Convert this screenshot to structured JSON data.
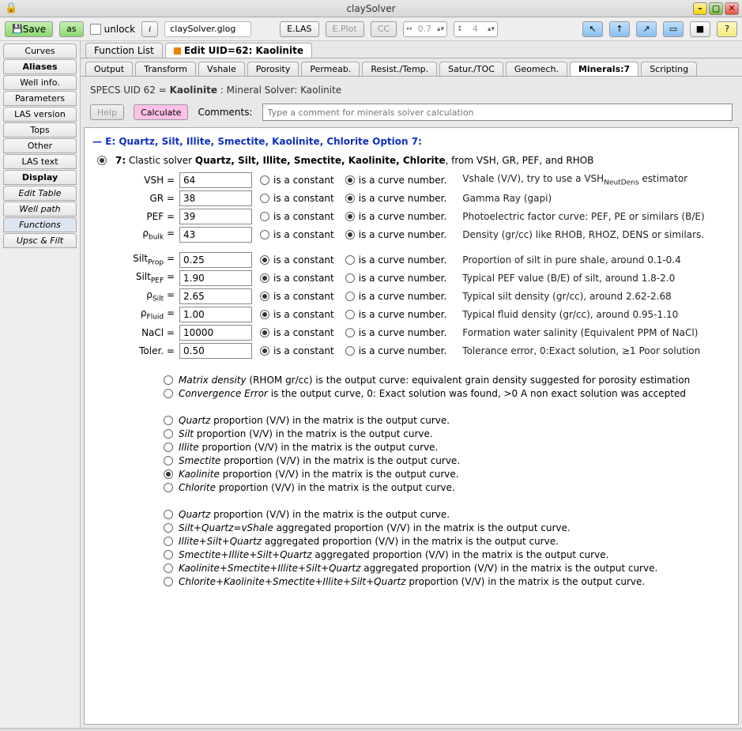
{
  "window": {
    "title": "claySolver"
  },
  "toolbar": {
    "save": "Save",
    "as": "as",
    "unlock": "unlock",
    "info": "i",
    "file": "claySolver.glog",
    "elas": "E.LAS",
    "eplot": "E.Plot",
    "cc": "CC",
    "spin1": "0.7",
    "spin2": "4",
    "help": "?"
  },
  "sidebar": [
    {
      "label": "Curves",
      "bold": false,
      "italic": false,
      "active": false
    },
    {
      "label": "Aliases",
      "bold": true,
      "italic": false,
      "active": false
    },
    {
      "label": "Well info.",
      "bold": false,
      "italic": false,
      "active": false
    },
    {
      "label": "Parameters",
      "bold": false,
      "italic": false,
      "active": false
    },
    {
      "label": "LAS version",
      "bold": false,
      "italic": false,
      "active": false
    },
    {
      "label": "Tops",
      "bold": false,
      "italic": false,
      "active": false
    },
    {
      "label": "Other",
      "bold": false,
      "italic": false,
      "active": false
    },
    {
      "label": "LAS text",
      "bold": false,
      "italic": false,
      "active": false
    },
    {
      "label": "Display",
      "bold": true,
      "italic": false,
      "active": false
    },
    {
      "label": "Edit Table",
      "bold": false,
      "italic": true,
      "active": false
    },
    {
      "label": "Well path",
      "bold": false,
      "italic": true,
      "active": false
    },
    {
      "label": "Functions",
      "bold": false,
      "italic": true,
      "active": true
    },
    {
      "label": "Upsc & Filt",
      "bold": false,
      "italic": true,
      "active": false
    }
  ],
  "toptabs": [
    {
      "label": "Function List",
      "active": false
    },
    {
      "label": "Edit UID=62: Kaolinite",
      "active": true,
      "icon": true
    }
  ],
  "subtabs": [
    {
      "label": "Output",
      "active": false
    },
    {
      "label": "Transform",
      "active": false
    },
    {
      "label": "Vshale",
      "active": false
    },
    {
      "label": "Porosity",
      "active": false
    },
    {
      "label": "Permeab.",
      "active": false
    },
    {
      "label": "Resist./Temp.",
      "active": false
    },
    {
      "label": "Satur./TOC",
      "active": false
    },
    {
      "label": "Geomech.",
      "active": false
    },
    {
      "label": "Minerals:7",
      "active": true
    },
    {
      "label": "Scripting",
      "active": false
    }
  ],
  "specs": {
    "pre": "SPECS UID 62 = ",
    "name": "Kaolinite",
    "post": " : Mineral Solver: Kaolinite"
  },
  "help": "Help",
  "calc": "Calculate",
  "comments_label": "Comments:",
  "comment_placeholder": "Type a comment for minerals solver calculation",
  "section_hdr": "— E: Quartz, Silt, Illite, Smectite, Kaolinite, Chlorite Option 7:",
  "opt7": {
    "pre": "7:",
    "t1": "Clastic solver  ",
    "bold": "Quartz, Silt, Illite, Smectite, Kaolinite, Chlorite",
    "post": ", from VSH, GR, PEF, and RHOB"
  },
  "labels": {
    "const": "is a constant",
    "curve": "is a curve number."
  },
  "params": [
    {
      "label": "VSH =",
      "value": "64",
      "const": false,
      "curve": true,
      "desc_html": "Vshale (V/V), try to use a VSH<span class=\"sub\">NeutDens</span> estimator"
    },
    {
      "label": "GR =",
      "value": "38",
      "const": false,
      "curve": true,
      "desc_html": "Gamma Ray (gapi)"
    },
    {
      "label": "PEF =",
      "value": "39",
      "const": false,
      "curve": true,
      "desc_html": "Photoelectric factor curve: PEF, PE or similars (B/E)"
    },
    {
      "label_html": "ρ<span class=\"sub\">bulk</span> =",
      "value": "43",
      "const": false,
      "curve": true,
      "desc_html": "Density (gr/cc) like RHOB, RHOZ, DENS or similars."
    }
  ],
  "params2": [
    {
      "label_html": "Silt<span class=\"sub\">Prop</span> =",
      "value": "0.25",
      "const": true,
      "curve": false,
      "desc_html": "Proportion of silt in pure shale, around 0.1-0.4"
    },
    {
      "label_html": "Silt<span class=\"sub\">PEF</span> =",
      "value": "1.90",
      "const": true,
      "curve": false,
      "desc_html": "Typical PEF value (B/E) of silt, around 1.8-2.0"
    },
    {
      "label_html": "ρ<span class=\"sub\">Silt</span> =",
      "value": "2.65",
      "const": true,
      "curve": false,
      "desc_html": "Typical silt density (gr/cc), around 2.62-2.68"
    },
    {
      "label_html": "ρ<span class=\"sub\">Fluid</span> =",
      "value": "1.00",
      "const": true,
      "curve": false,
      "desc_html": "Typical fluid density (gr/cc), around 0.95-1.10"
    },
    {
      "label": "NaCl =",
      "value": "10000",
      "const": true,
      "curve": false,
      "desc_html": "Formation water salinity (Equivalent PPM of NaCl)"
    },
    {
      "label": "Toler. =",
      "value": "0.50",
      "const": true,
      "curve": false,
      "desc_html": "Tolerance error, 0:Exact solution, ≥1 Poor solution"
    }
  ],
  "outputs1": [
    {
      "on": false,
      "html": "<em>Matrix density</em> (RHOM gr/cc) is the output curve: equivalent grain density suggested for porosity estimation"
    },
    {
      "on": false,
      "html": "<em>Convergence Error</em> is the output curve, 0: Exact solution was found, &gt;0 A non exact solution was accepted"
    }
  ],
  "outputs2": [
    {
      "on": false,
      "html": "<em>Quartz</em> proportion (V/V) in the matrix is the output curve."
    },
    {
      "on": false,
      "html": "<em>Silt</em> proportion (V/V) in the matrix is the output curve."
    },
    {
      "on": false,
      "html": "<em>Illite</em> proportion (V/V) in the matrix is the output curve."
    },
    {
      "on": false,
      "html": "<em>Smectite</em> proportion (V/V) in the matrix is the output curve."
    },
    {
      "on": true,
      "html": "<em>Kaolinite</em> proportion (V/V) in the matrix is the output curve."
    },
    {
      "on": false,
      "html": "<em>Chlorite</em> proportion (V/V) in the matrix is the output curve."
    }
  ],
  "outputs3": [
    {
      "on": false,
      "html": "<em>Quartz</em> proportion (V/V) in the matrix is the output curve."
    },
    {
      "on": false,
      "html": "<em>Silt+Quartz=vShale</em> aggregated proportion (V/V) in the matrix is the output curve."
    },
    {
      "on": false,
      "html": "<em>Illite+Silt+Quartz</em> aggregated proportion (V/V) in the matrix is the output curve."
    },
    {
      "on": false,
      "html": "<em>Smectite+Illite+Silt+Quartz</em> aggregated proportion (V/V) in the matrix is the output curve."
    },
    {
      "on": false,
      "html": "<em>Kaolinite+Smectite+Illite+Silt+Quartz</em> aggregated proportion (V/V) in the matrix is the output curve."
    },
    {
      "on": false,
      "html": "<em>Chlorite+Kaolinite+Smectite+Illite+Silt+Quartz</em> proportion (V/V) in the matrix is the output curve."
    }
  ]
}
